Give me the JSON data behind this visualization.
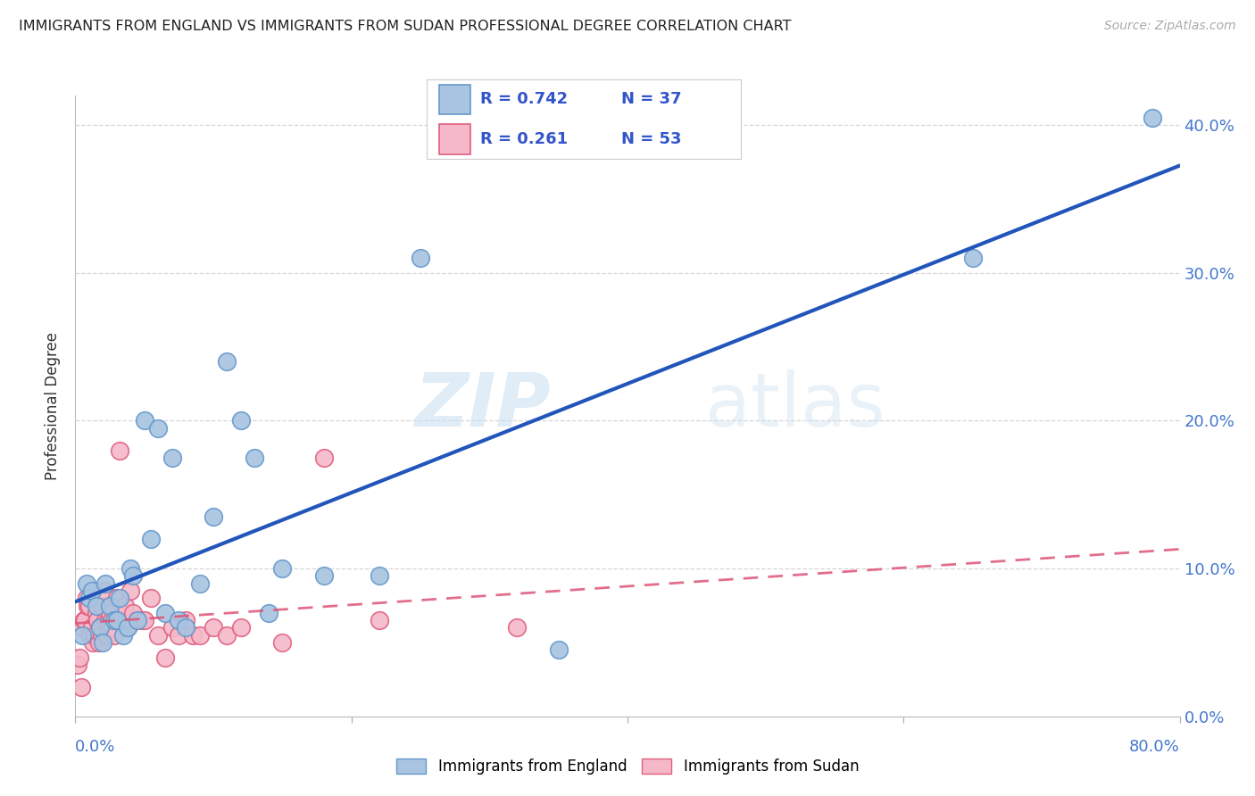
{
  "title": "IMMIGRANTS FROM ENGLAND VS IMMIGRANTS FROM SUDAN PROFESSIONAL DEGREE CORRELATION CHART",
  "source": "Source: ZipAtlas.com",
  "xlim": [
    0.0,
    80.0
  ],
  "ylim": [
    0.0,
    42.0
  ],
  "england_color": "#a8c4e0",
  "england_edge_color": "#6699cc",
  "sudan_color": "#f4b8c8",
  "sudan_edge_color": "#e06080",
  "england_line_color": "#2255bb",
  "sudan_line_color": "#dd5577",
  "legend_r_england": "0.742",
  "legend_n_england": "37",
  "legend_r_sudan": "0.261",
  "legend_n_sudan": "53",
  "ylabel": "Professional Degree",
  "legend_label_england": "Immigrants from England",
  "legend_label_sudan": "Immigrants from Sudan",
  "england_x": [
    0.5,
    0.8,
    1.0,
    1.2,
    1.5,
    1.8,
    2.0,
    2.2,
    2.5,
    2.8,
    3.0,
    3.2,
    3.5,
    3.8,
    4.0,
    4.2,
    4.5,
    5.0,
    5.5,
    6.0,
    6.5,
    7.0,
    7.5,
    8.0,
    9.0,
    10.0,
    11.0,
    12.0,
    13.0,
    14.0,
    15.0,
    18.0,
    22.0,
    25.0,
    35.0,
    65.0,
    78.0
  ],
  "england_y": [
    5.5,
    9.0,
    8.0,
    8.5,
    7.5,
    6.0,
    5.0,
    9.0,
    7.5,
    6.5,
    6.5,
    8.0,
    5.5,
    6.0,
    10.0,
    9.5,
    6.5,
    20.0,
    12.0,
    19.5,
    7.0,
    17.5,
    6.5,
    6.0,
    9.0,
    13.5,
    24.0,
    20.0,
    17.5,
    7.0,
    10.0,
    9.5,
    9.5,
    31.0,
    4.5,
    31.0,
    40.5
  ],
  "sudan_x": [
    0.2,
    0.3,
    0.4,
    0.5,
    0.6,
    0.7,
    0.8,
    0.9,
    1.0,
    1.1,
    1.2,
    1.3,
    1.4,
    1.5,
    1.6,
    1.7,
    1.8,
    1.9,
    2.0,
    2.1,
    2.2,
    2.3,
    2.4,
    2.5,
    2.6,
    2.7,
    2.8,
    2.9,
    3.0,
    3.2,
    3.4,
    3.6,
    3.8,
    4.0,
    4.2,
    4.5,
    4.8,
    5.0,
    5.5,
    6.0,
    6.5,
    7.0,
    7.5,
    8.0,
    8.5,
    9.0,
    10.0,
    11.0,
    12.0,
    15.0,
    18.0,
    22.0,
    32.0
  ],
  "sudan_y": [
    3.5,
    4.0,
    2.0,
    6.0,
    6.5,
    6.5,
    8.0,
    7.5,
    7.5,
    5.5,
    6.0,
    5.0,
    5.5,
    7.0,
    6.5,
    5.0,
    6.0,
    5.5,
    7.5,
    8.5,
    6.5,
    5.5,
    6.5,
    7.0,
    6.5,
    6.0,
    5.5,
    6.5,
    8.0,
    18.0,
    7.0,
    7.5,
    6.0,
    8.5,
    7.0,
    6.5,
    6.5,
    6.5,
    8.0,
    5.5,
    4.0,
    6.0,
    5.5,
    6.5,
    5.5,
    5.5,
    6.0,
    5.5,
    6.0,
    5.0,
    17.5,
    6.5,
    6.0
  ],
  "watermark_zip": "ZIP",
  "watermark_atlas": "atlas",
  "background_color": "#ffffff",
  "grid_color": "#cccccc",
  "tick_color": "#4477cc",
  "label_color": "#333333"
}
